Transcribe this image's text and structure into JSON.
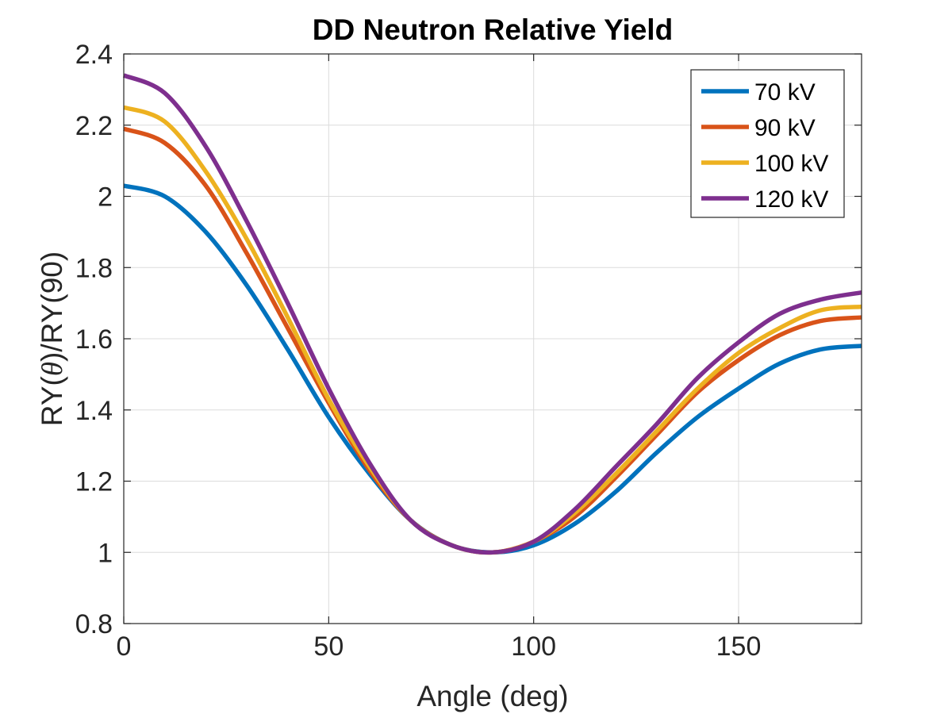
{
  "chart_data": {
    "type": "line",
    "title": "DD Neutron Relative Yield",
    "xlabel": "Angle (deg)",
    "ylabel_prefix": "RY(",
    "ylabel_theta": "θ",
    "ylabel_suffix": ")/RY(90)",
    "xlim": [
      0,
      180
    ],
    "ylim": [
      0.8,
      2.4
    ],
    "xticks": [
      0,
      50,
      100,
      150
    ],
    "xtick_labels": [
      "0",
      "50",
      "100",
      "150"
    ],
    "yticks": [
      0.8,
      1.0,
      1.2,
      1.4,
      1.6,
      1.8,
      2.0,
      2.2,
      2.4
    ],
    "ytick_labels": [
      "0.8",
      "1",
      "1.2",
      "1.4",
      "1.6",
      "1.8",
      "2",
      "2.2",
      "2.4"
    ],
    "grid": true,
    "legend_position": "top-right",
    "x": [
      0,
      10,
      20,
      30,
      40,
      50,
      60,
      70,
      80,
      90,
      100,
      110,
      120,
      130,
      140,
      150,
      160,
      170,
      180
    ],
    "series": [
      {
        "name": "70 kV",
        "color": "#0072BD",
        "values": [
          2.03,
          2.0,
          1.9,
          1.75,
          1.57,
          1.38,
          1.22,
          1.09,
          1.02,
          1.0,
          1.02,
          1.08,
          1.17,
          1.28,
          1.38,
          1.46,
          1.53,
          1.57,
          1.58
        ]
      },
      {
        "name": "90 kV",
        "color": "#D95319",
        "values": [
          2.19,
          2.15,
          2.03,
          1.84,
          1.63,
          1.42,
          1.23,
          1.09,
          1.02,
          1.0,
          1.03,
          1.1,
          1.21,
          1.33,
          1.45,
          1.54,
          1.61,
          1.65,
          1.66
        ]
      },
      {
        "name": "100 kV",
        "color": "#EDB120",
        "values": [
          2.25,
          2.21,
          2.07,
          1.88,
          1.66,
          1.43,
          1.24,
          1.09,
          1.02,
          1.0,
          1.03,
          1.11,
          1.22,
          1.34,
          1.46,
          1.56,
          1.63,
          1.68,
          1.69
        ]
      },
      {
        "name": "120 kV",
        "color": "#7E2F8E",
        "values": [
          2.34,
          2.29,
          2.14,
          1.93,
          1.7,
          1.46,
          1.25,
          1.09,
          1.02,
          1.0,
          1.03,
          1.12,
          1.24,
          1.36,
          1.49,
          1.59,
          1.67,
          1.71,
          1.73
        ]
      }
    ]
  }
}
